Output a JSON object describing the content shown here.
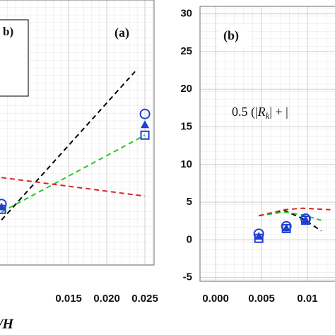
{
  "chart_data": [
    {
      "type": "line",
      "title": "(a)",
      "legend_text": "b)",
      "xlabel": "/H",
      "xlim": [
        0.006,
        0.0262
      ],
      "ylim": [
        0,
        1
      ],
      "xticks": [
        {
          "value": 0.015,
          "label": "0.015"
        },
        {
          "value": 0.02,
          "label": "0.020"
        },
        {
          "value": 0.025,
          "label": "0.025"
        }
      ],
      "series": [
        {
          "kind": "line",
          "color": "#000000",
          "x": [
            0.0062,
            0.0237
          ],
          "values": [
            0.17,
            0.73
          ]
        },
        {
          "kind": "line",
          "color": "#22cc22",
          "x": [
            0.0062,
            0.025
          ],
          "values": [
            0.2,
            0.49
          ]
        },
        {
          "kind": "line",
          "color": "#dd2222",
          "x": [
            0.0062,
            0.025
          ],
          "values": [
            0.33,
            0.26
          ]
        },
        {
          "kind": "scatter",
          "marker": "circle",
          "color": "#1f3fd0",
          "x": [
            0.0062,
            0.025
          ],
          "values": [
            0.23,
            0.57
          ]
        },
        {
          "kind": "scatter",
          "marker": "triangle",
          "color": "#1f3fd0",
          "x": [
            0.0062,
            0.025
          ],
          "values": [
            0.22,
            0.53
          ]
        },
        {
          "kind": "scatter",
          "marker": "square",
          "color": "#1f3fd0",
          "x": [
            0.0062,
            0.025
          ],
          "values": [
            0.21,
            0.49
          ]
        }
      ]
    },
    {
      "type": "line",
      "title": "(b)",
      "annotation": {
        "pre": "0.5 (|",
        "var": "R",
        "sub": "k",
        "post": "| + |"
      },
      "xlim": [
        -0.0017,
        0.0146
      ],
      "ylim": [
        -5.5,
        31
      ],
      "xticks": [
        {
          "value": 0,
          "label": "0.000"
        },
        0.005,
        0.01
      ],
      "yticks": [
        -5,
        0,
        5,
        10,
        15,
        20,
        25,
        30
      ],
      "series": [
        {
          "kind": "line",
          "color": "#000000",
          "x": [
            0.0047,
            0.0075,
            0.0095,
            0.0115
          ],
          "values": [
            3.2,
            3.9,
            2.8,
            1.2
          ]
        },
        {
          "kind": "line",
          "color": "#22cc22",
          "x": [
            0.0047,
            0.0075,
            0.0095,
            0.0115
          ],
          "values": [
            3.2,
            3.7,
            3.3,
            2.6
          ]
        },
        {
          "kind": "line",
          "color": "#dd2222",
          "x": [
            0.0047,
            0.0075,
            0.0095,
            0.0125
          ],
          "values": [
            3.2,
            4.0,
            4.2,
            4.0
          ]
        },
        {
          "kind": "scatter",
          "marker": "circle",
          "color": "#1f3fd0",
          "x": [
            0.0047,
            0.0077,
            0.0098
          ],
          "values": [
            0.8,
            1.8,
            2.8
          ]
        },
        {
          "kind": "scatter",
          "marker": "triangle",
          "color": "#1f3fd0",
          "x": [
            0.0047,
            0.0077,
            0.0098
          ],
          "values": [
            0.5,
            1.6,
            2.7
          ]
        },
        {
          "kind": "scatter",
          "marker": "square",
          "color": "#1f3fd0",
          "x": [
            0.0047,
            0.0077,
            0.0098
          ],
          "values": [
            0.2,
            1.5,
            2.6
          ]
        }
      ]
    }
  ]
}
